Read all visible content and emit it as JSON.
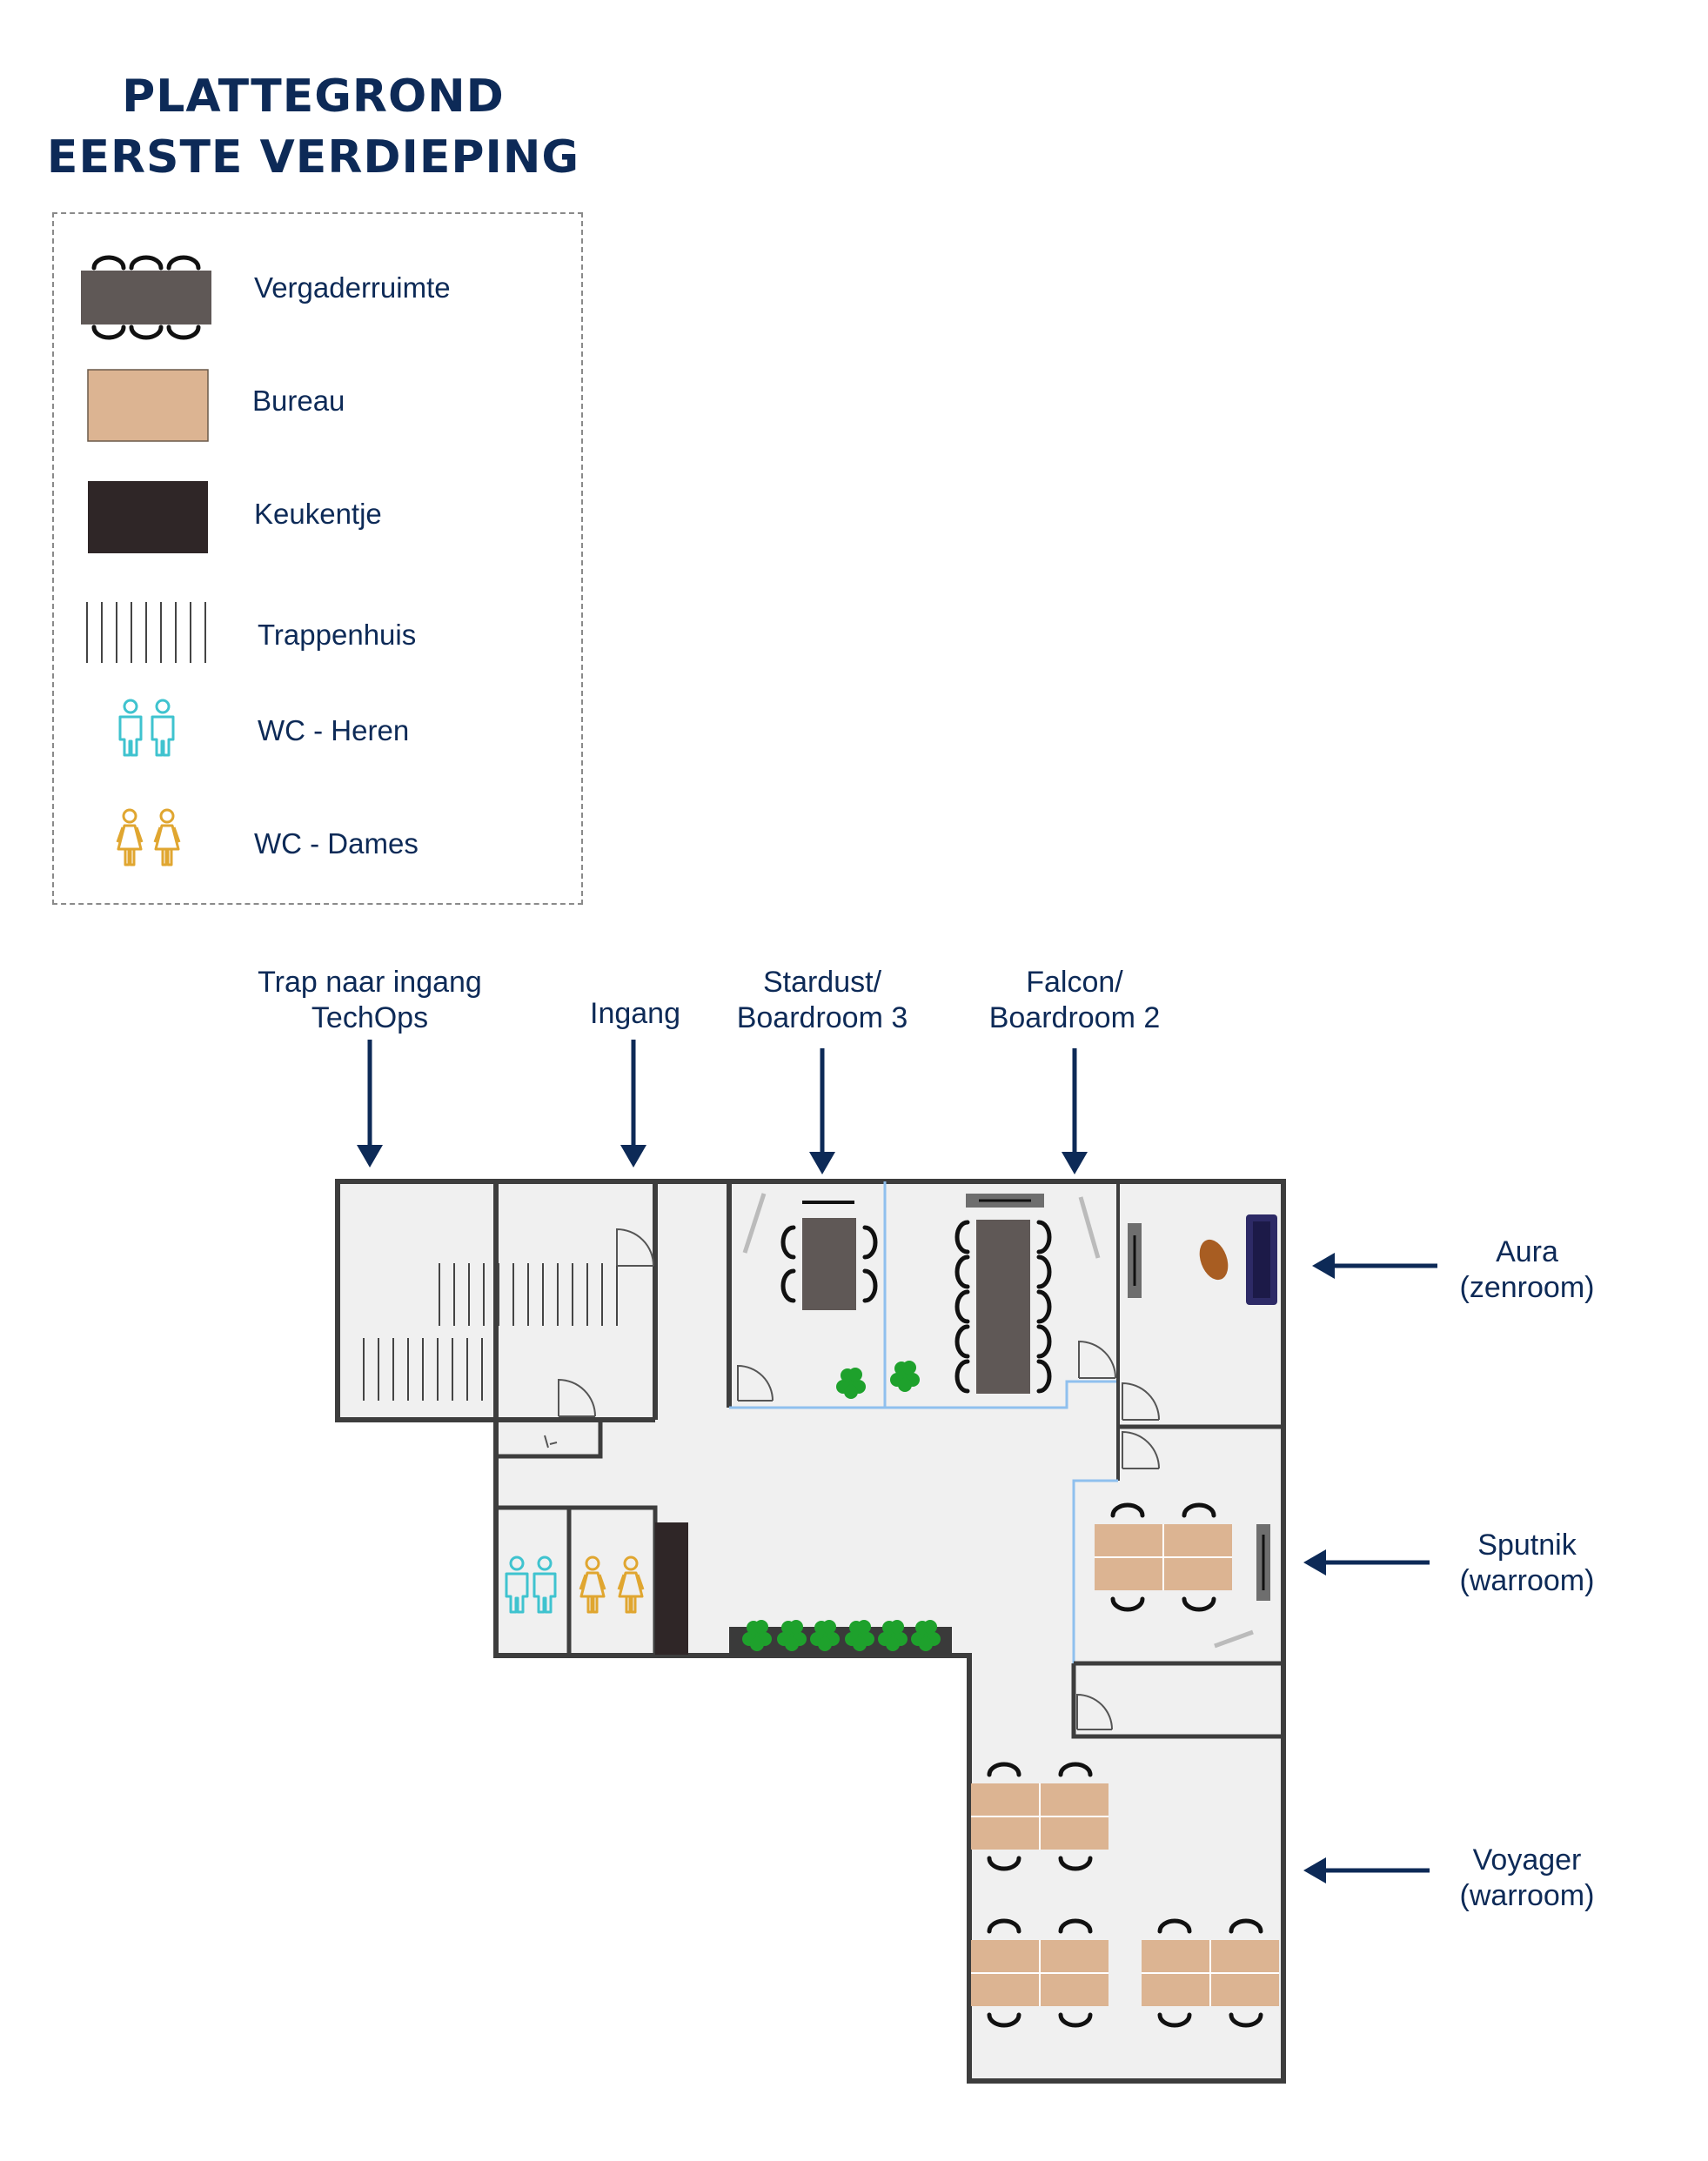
{
  "title": {
    "line1": "PLATTEGROND",
    "line2": "EERSTE VERDIEPING"
  },
  "legend": [
    {
      "id": "meeting",
      "label": "Vergaderruimte"
    },
    {
      "id": "desk",
      "label": "Bureau"
    },
    {
      "id": "kitchen",
      "label": "Keukentje"
    },
    {
      "id": "stairs",
      "label": "Trappenhuis"
    },
    {
      "id": "wc-men",
      "label": "WC - Heren"
    },
    {
      "id": "wc-women",
      "label": "WC - Dames"
    }
  ],
  "callouts": {
    "trap": {
      "line1": "Trap naar ingang",
      "line2": "TechOps"
    },
    "ingang": {
      "line1": "Ingang"
    },
    "stardust": {
      "line1": "Stardust/",
      "line2": "Boardroom 3"
    },
    "falcon": {
      "line1": "Falcon/",
      "line2": "Boardroom 2"
    },
    "aura": {
      "line1": "Aura",
      "line2": "(zenroom)"
    },
    "sputnik": {
      "line1": "Sputnik",
      "line2": "(warroom)"
    },
    "voyager": {
      "line1": "Voyager",
      "line2": "(warroom)"
    }
  },
  "colors": {
    "navy": "#0d2a57",
    "meeting_table": "#5f5856",
    "desk": "#dcb492",
    "kitchen": "#2f2627",
    "wall": "#3d3d3d",
    "floor": "#f0f0f0",
    "glass": "#8fc0ee",
    "plant": "#1ea12c",
    "wc_men": "#3fc3cf",
    "wc_women": "#e0a630",
    "sofa": "#2d2a66",
    "rug": "#a85d22",
    "screen": "#6e6e6e"
  },
  "icons": [
    "chair-icon",
    "stairs-icon",
    "wc-men-icon",
    "wc-women-icon",
    "plant-icon",
    "door-icon",
    "arrow-icon",
    "sofa-icon"
  ]
}
